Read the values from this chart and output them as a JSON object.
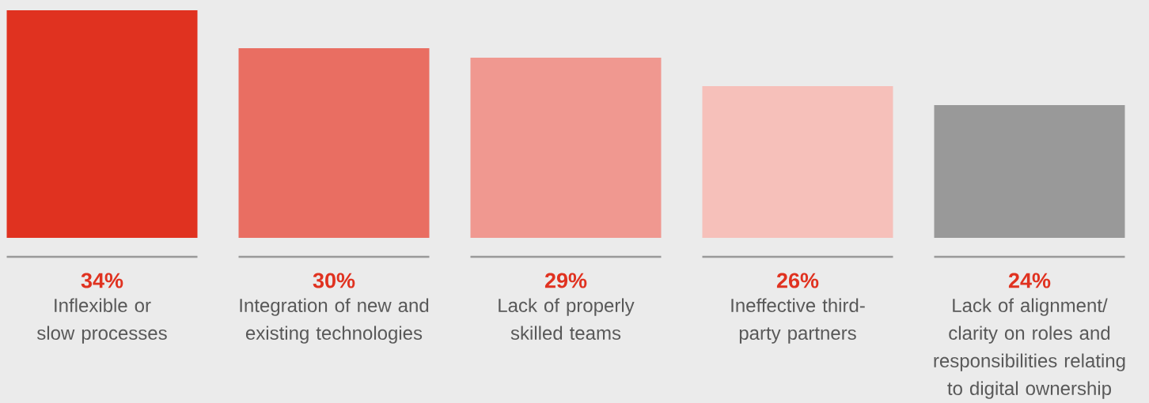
{
  "chart_data": {
    "type": "bar",
    "categories": [
      "Inflexible or slow processes",
      "Integration of new and existing technologies",
      "Lack of properly skilled teams",
      "Ineffective third-party partners",
      "Lack of alignment/ clarity on roles and responsibilities relating to digital ownership"
    ],
    "values": [
      34,
      30,
      29,
      26,
      24
    ],
    "value_labels": [
      "34%",
      "30%",
      "29%",
      "26%",
      "24%"
    ],
    "colors": [
      "#e03220",
      "#e96e62",
      "#f09890",
      "#f6c0ba",
      "#999999"
    ],
    "ylim": [
      10,
      34
    ]
  }
}
